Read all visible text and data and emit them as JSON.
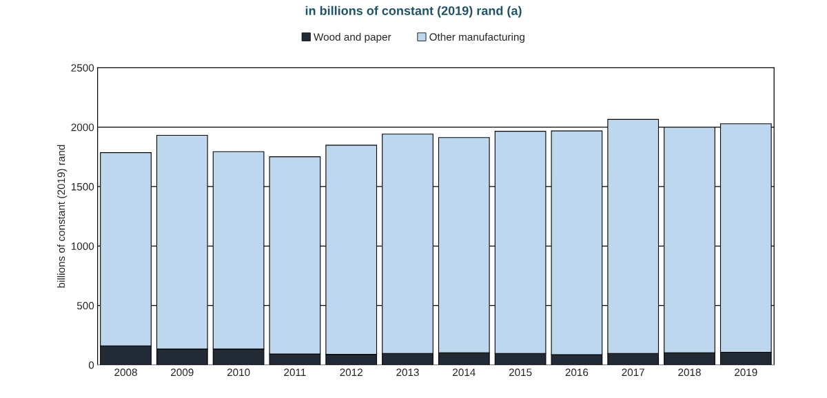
{
  "chart_data": {
    "type": "bar",
    "title": "in billions of constant (2019) rand (a)",
    "ylabel": "billions of constant (2019) rand",
    "categories": [
      "2008",
      "2009",
      "2010",
      "2011",
      "2012",
      "2013",
      "2014",
      "2015",
      "2016",
      "2017",
      "2018",
      "2019"
    ],
    "stacked": true,
    "series": [
      {
        "name": "Wood and paper",
        "color": "#222a35",
        "values": [
          161,
          134,
          134,
          93,
          89,
          97,
          103,
          97,
          87,
          97,
          103,
          107
        ]
      },
      {
        "name": "Other manufacturing",
        "color": "#bdd7ee",
        "values": [
          1625,
          1797,
          1660,
          1658,
          1759,
          1844,
          1809,
          1868,
          1881,
          1968,
          1896,
          1921
        ]
      }
    ],
    "ylim": [
      0,
      2500
    ],
    "yticks": [
      0,
      500,
      1000,
      1500,
      2000,
      2500
    ],
    "grid": "y",
    "legend": "top"
  }
}
